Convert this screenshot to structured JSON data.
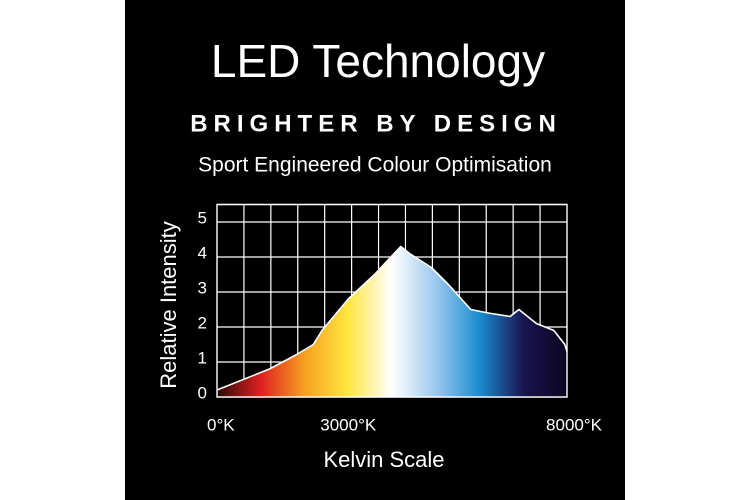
{
  "chart_data": {
    "type": "area",
    "title": "LED Technology",
    "subtitle": "BRIGHTER BY DESIGN",
    "description": "Sport Engineered Colour Optimisation",
    "x_label": "Kelvin Scale",
    "y_label": "Relative Intensity",
    "x": [
      0,
      600,
      1200,
      1800,
      2200,
      2400,
      3000,
      3600,
      4200,
      4400,
      4900,
      5300,
      5800,
      6200,
      6700,
      6900,
      7300,
      7700,
      7950,
      8000
    ],
    "values": [
      0.2,
      0.5,
      0.8,
      1.2,
      1.5,
      1.9,
      2.8,
      3.5,
      4.3,
      4.1,
      3.7,
      3.2,
      2.5,
      2.4,
      2.3,
      2.5,
      2.1,
      1.9,
      1.5,
      1.3
    ],
    "color": "#ffffff",
    "fill_colors": [
      "#2a0808",
      "#e02020",
      "#f5a020",
      "#ffe640",
      "#ffffff",
      "#9cc8ef",
      "#1a8cd0",
      "#1a1450",
      "#0c0520"
    ],
    "xlim": [
      0,
      8000
    ],
    "xticks": [
      {
        "value": 0,
        "label": "0°K"
      },
      {
        "value": 3000,
        "label": "3000°K"
      },
      {
        "value": 8000,
        "label": "8000°K"
      }
    ],
    "ylim": [
      0,
      5.5
    ],
    "yticks": [
      0,
      1,
      2,
      3,
      4,
      5
    ],
    "grid": true
  }
}
